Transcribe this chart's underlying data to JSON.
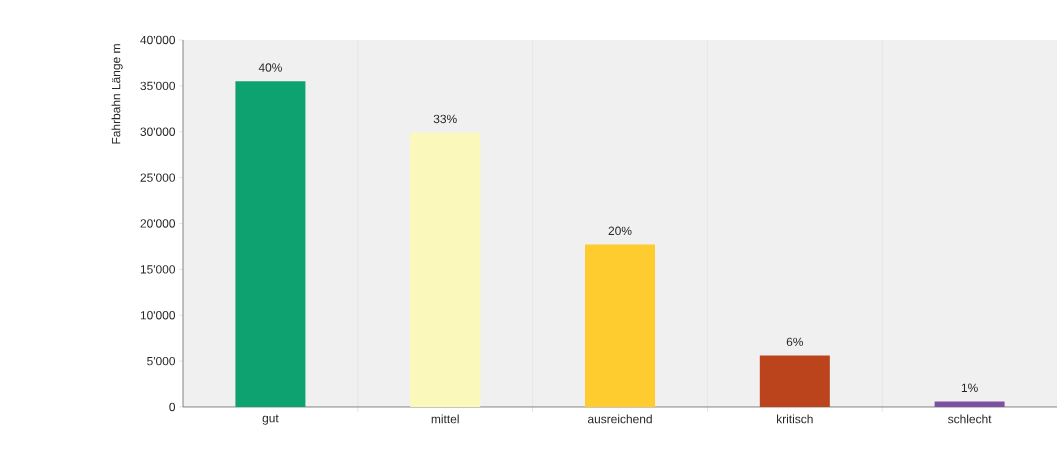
{
  "chart_data": {
    "type": "bar",
    "ylabel": "Fahrbahn Länge  m",
    "categories": [
      "gut",
      "mittel",
      "ausreichend",
      "kritisch",
      "schlecht"
    ],
    "values": [
      35500,
      29900,
      17700,
      5600,
      600
    ],
    "colors": [
      "#0ea271",
      "#fbf8bb",
      "#fecc2f",
      "#bb441d",
      "#7c52a0"
    ],
    "annotations": [
      {
        "text": "40%",
        "x": "gut",
        "y": 35500
      },
      {
        "text": "33%",
        "x": "mittel",
        "y": 29900
      },
      {
        "text": "20%",
        "x": "ausreichend",
        "y": 17700
      },
      {
        "text": "6%",
        "x": "kritisch",
        "y": 5600
      },
      {
        "text": "1%",
        "x": "schlecht",
        "y": 600
      }
    ],
    "ylim": [
      0,
      40000
    ],
    "yticks": [
      0,
      {
        "value": 5000,
        "label": "5'000"
      },
      {
        "value": 10000,
        "label": "10'000"
      },
      {
        "value": 15000,
        "label": "15'000"
      },
      {
        "value": 20000,
        "label": "20'000"
      },
      {
        "value": 25000,
        "label": "25'000"
      },
      {
        "value": 30000,
        "label": "30'000"
      },
      {
        "value": 35000,
        "label": "35'000"
      },
      {
        "value": 40000,
        "label": "40'000"
      }
    ],
    "grid": "x"
  }
}
